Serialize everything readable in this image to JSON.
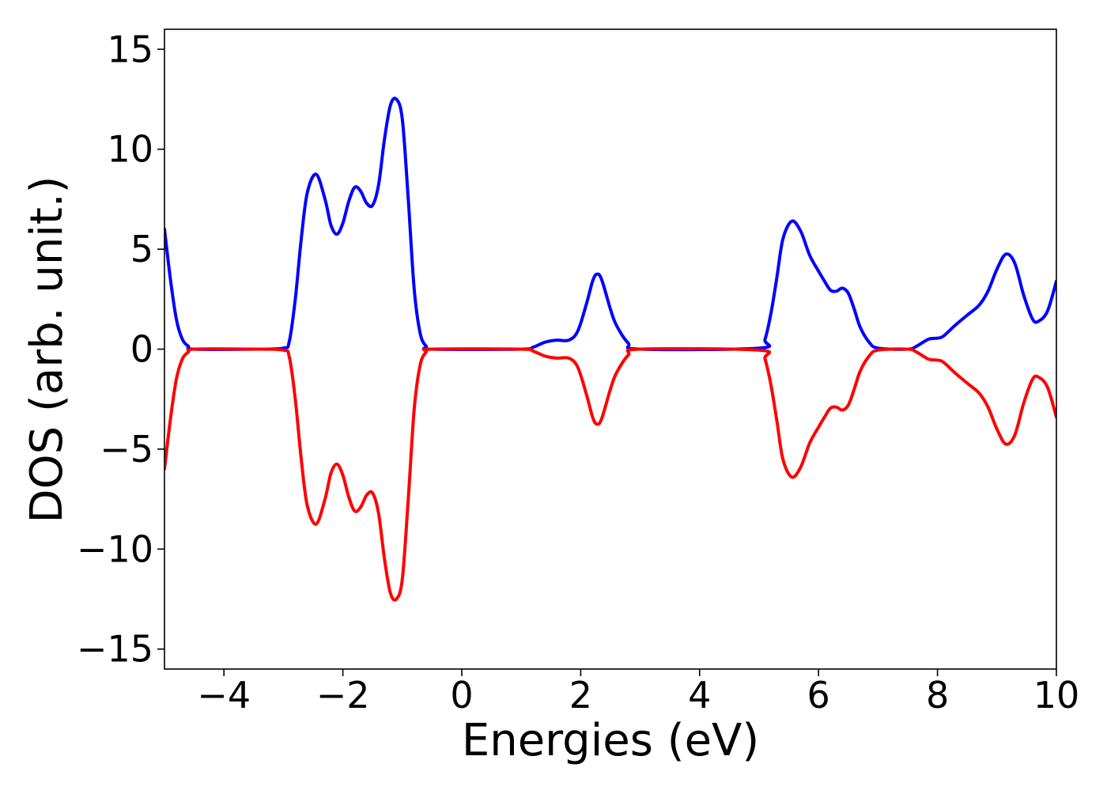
{
  "chart_data": {
    "type": "line",
    "title": "",
    "xlabel": "Energies (eV)",
    "ylabel": "DOS (arb. unit.)",
    "xlim": [
      -5,
      10
    ],
    "ylim": [
      -16,
      16
    ],
    "grid": false,
    "legend": "none",
    "x_ticks": [
      {
        "value": -4,
        "label": "−4"
      },
      {
        "value": -2,
        "label": "−2"
      },
      {
        "value": 0,
        "label": "0"
      },
      {
        "value": 2,
        "label": "2"
      },
      {
        "value": 4,
        "label": "4"
      },
      {
        "value": 6,
        "label": "6"
      },
      {
        "value": 8,
        "label": "8"
      },
      {
        "value": 10,
        "label": "10"
      }
    ],
    "y_ticks": [
      {
        "value": 15,
        "label": "15"
      },
      {
        "value": 10,
        "label": "10"
      },
      {
        "value": 5,
        "label": "5"
      },
      {
        "value": 0,
        "label": "0"
      },
      {
        "value": -5,
        "label": "−5"
      },
      {
        "value": -10,
        "label": "−10"
      },
      {
        "value": -15,
        "label": "−15"
      }
    ],
    "series": [
      {
        "color": "#0000ff",
        "points": [
          [
            -5.0,
            6.0
          ],
          [
            -4.9,
            3.5
          ],
          [
            -4.8,
            1.5
          ],
          [
            -4.7,
            0.5
          ],
          [
            -4.6,
            0.15
          ],
          [
            -4.5,
            0.0
          ],
          [
            -3.5,
            0.0
          ],
          [
            -3.0,
            0.05
          ],
          [
            -2.9,
            0.4
          ],
          [
            -2.8,
            2.5
          ],
          [
            -2.7,
            5.5
          ],
          [
            -2.6,
            7.8
          ],
          [
            -2.45,
            8.75
          ],
          [
            -2.3,
            7.5
          ],
          [
            -2.2,
            6.2
          ],
          [
            -2.1,
            5.75
          ],
          [
            -2.0,
            6.3
          ],
          [
            -1.9,
            7.4
          ],
          [
            -1.8,
            8.1
          ],
          [
            -1.7,
            7.9
          ],
          [
            -1.6,
            7.3
          ],
          [
            -1.5,
            7.2
          ],
          [
            -1.4,
            8.2
          ],
          [
            -1.3,
            10.5
          ],
          [
            -1.2,
            12.2
          ],
          [
            -1.1,
            12.5
          ],
          [
            -1.0,
            11.5
          ],
          [
            -0.9,
            7.5
          ],
          [
            -0.8,
            3.0
          ],
          [
            -0.7,
            0.8
          ],
          [
            -0.6,
            0.15
          ],
          [
            -0.5,
            0.0
          ],
          [
            1.0,
            0.0
          ],
          [
            1.2,
            0.1
          ],
          [
            1.4,
            0.35
          ],
          [
            1.6,
            0.45
          ],
          [
            1.8,
            0.45
          ],
          [
            1.95,
            0.9
          ],
          [
            2.1,
            2.3
          ],
          [
            2.2,
            3.4
          ],
          [
            2.27,
            3.75
          ],
          [
            2.35,
            3.5
          ],
          [
            2.5,
            2.0
          ],
          [
            2.6,
            1.2
          ],
          [
            2.8,
            0.3
          ],
          [
            3.0,
            0.0
          ],
          [
            5.0,
            0.05
          ],
          [
            5.1,
            0.5
          ],
          [
            5.2,
            1.8
          ],
          [
            5.3,
            3.6
          ],
          [
            5.4,
            5.5
          ],
          [
            5.55,
            6.4
          ],
          [
            5.7,
            5.9
          ],
          [
            5.85,
            4.7
          ],
          [
            6.0,
            3.9
          ],
          [
            6.1,
            3.4
          ],
          [
            6.2,
            2.95
          ],
          [
            6.3,
            2.9
          ],
          [
            6.4,
            3.05
          ],
          [
            6.5,
            2.8
          ],
          [
            6.6,
            2.0
          ],
          [
            6.7,
            1.1
          ],
          [
            6.85,
            0.35
          ],
          [
            7.0,
            0.05
          ],
          [
            7.5,
            0.0
          ],
          [
            7.65,
            0.15
          ],
          [
            7.85,
            0.5
          ],
          [
            8.0,
            0.55
          ],
          [
            8.1,
            0.65
          ],
          [
            8.3,
            1.2
          ],
          [
            8.5,
            1.7
          ],
          [
            8.7,
            2.2
          ],
          [
            8.85,
            2.9
          ],
          [
            9.0,
            4.0
          ],
          [
            9.15,
            4.75
          ],
          [
            9.3,
            4.3
          ],
          [
            9.45,
            2.7
          ],
          [
            9.6,
            1.5
          ],
          [
            9.7,
            1.4
          ],
          [
            9.85,
            1.9
          ],
          [
            10.0,
            3.4
          ]
        ]
      },
      {
        "color": "#ff0000",
        "points": [
          [
            -5.0,
            -6.0
          ],
          [
            -4.9,
            -3.5
          ],
          [
            -4.8,
            -1.5
          ],
          [
            -4.7,
            -0.5
          ],
          [
            -4.6,
            -0.15
          ],
          [
            -4.5,
            0.0
          ],
          [
            -3.5,
            0.0
          ],
          [
            -3.0,
            -0.05
          ],
          [
            -2.9,
            -0.4
          ],
          [
            -2.8,
            -2.5
          ],
          [
            -2.7,
            -5.5
          ],
          [
            -2.6,
            -7.8
          ],
          [
            -2.45,
            -8.75
          ],
          [
            -2.3,
            -7.5
          ],
          [
            -2.2,
            -6.2
          ],
          [
            -2.1,
            -5.75
          ],
          [
            -2.0,
            -6.3
          ],
          [
            -1.9,
            -7.4
          ],
          [
            -1.8,
            -8.1
          ],
          [
            -1.7,
            -7.9
          ],
          [
            -1.6,
            -7.3
          ],
          [
            -1.5,
            -7.2
          ],
          [
            -1.4,
            -8.2
          ],
          [
            -1.3,
            -10.5
          ],
          [
            -1.2,
            -12.2
          ],
          [
            -1.1,
            -12.5
          ],
          [
            -1.0,
            -11.5
          ],
          [
            -0.9,
            -7.5
          ],
          [
            -0.8,
            -3.0
          ],
          [
            -0.7,
            -0.8
          ],
          [
            -0.6,
            -0.15
          ],
          [
            -0.5,
            0.0
          ],
          [
            1.0,
            0.0
          ],
          [
            1.2,
            -0.1
          ],
          [
            1.4,
            -0.35
          ],
          [
            1.6,
            -0.45
          ],
          [
            1.8,
            -0.45
          ],
          [
            1.95,
            -0.9
          ],
          [
            2.1,
            -2.3
          ],
          [
            2.2,
            -3.4
          ],
          [
            2.27,
            -3.75
          ],
          [
            2.35,
            -3.5
          ],
          [
            2.5,
            -2.0
          ],
          [
            2.6,
            -1.2
          ],
          [
            2.8,
            -0.3
          ],
          [
            3.0,
            0.0
          ],
          [
            5.0,
            -0.05
          ],
          [
            5.1,
            -0.5
          ],
          [
            5.2,
            -1.8
          ],
          [
            5.3,
            -3.6
          ],
          [
            5.4,
            -5.5
          ],
          [
            5.55,
            -6.4
          ],
          [
            5.7,
            -5.9
          ],
          [
            5.85,
            -4.7
          ],
          [
            6.0,
            -3.9
          ],
          [
            6.1,
            -3.4
          ],
          [
            6.2,
            -2.95
          ],
          [
            6.3,
            -2.9
          ],
          [
            6.4,
            -3.05
          ],
          [
            6.5,
            -2.8
          ],
          [
            6.6,
            -2.0
          ],
          [
            6.7,
            -1.1
          ],
          [
            6.85,
            -0.35
          ],
          [
            7.0,
            -0.05
          ],
          [
            7.5,
            0.0
          ],
          [
            7.65,
            -0.15
          ],
          [
            7.85,
            -0.5
          ],
          [
            8.0,
            -0.55
          ],
          [
            8.1,
            -0.65
          ],
          [
            8.3,
            -1.2
          ],
          [
            8.5,
            -1.7
          ],
          [
            8.7,
            -2.2
          ],
          [
            8.85,
            -2.9
          ],
          [
            9.0,
            -4.0
          ],
          [
            9.15,
            -4.75
          ],
          [
            9.3,
            -4.3
          ],
          [
            9.45,
            -2.7
          ],
          [
            9.6,
            -1.5
          ],
          [
            9.7,
            -1.4
          ],
          [
            9.85,
            -1.9
          ],
          [
            10.0,
            -3.4
          ]
        ]
      }
    ]
  }
}
